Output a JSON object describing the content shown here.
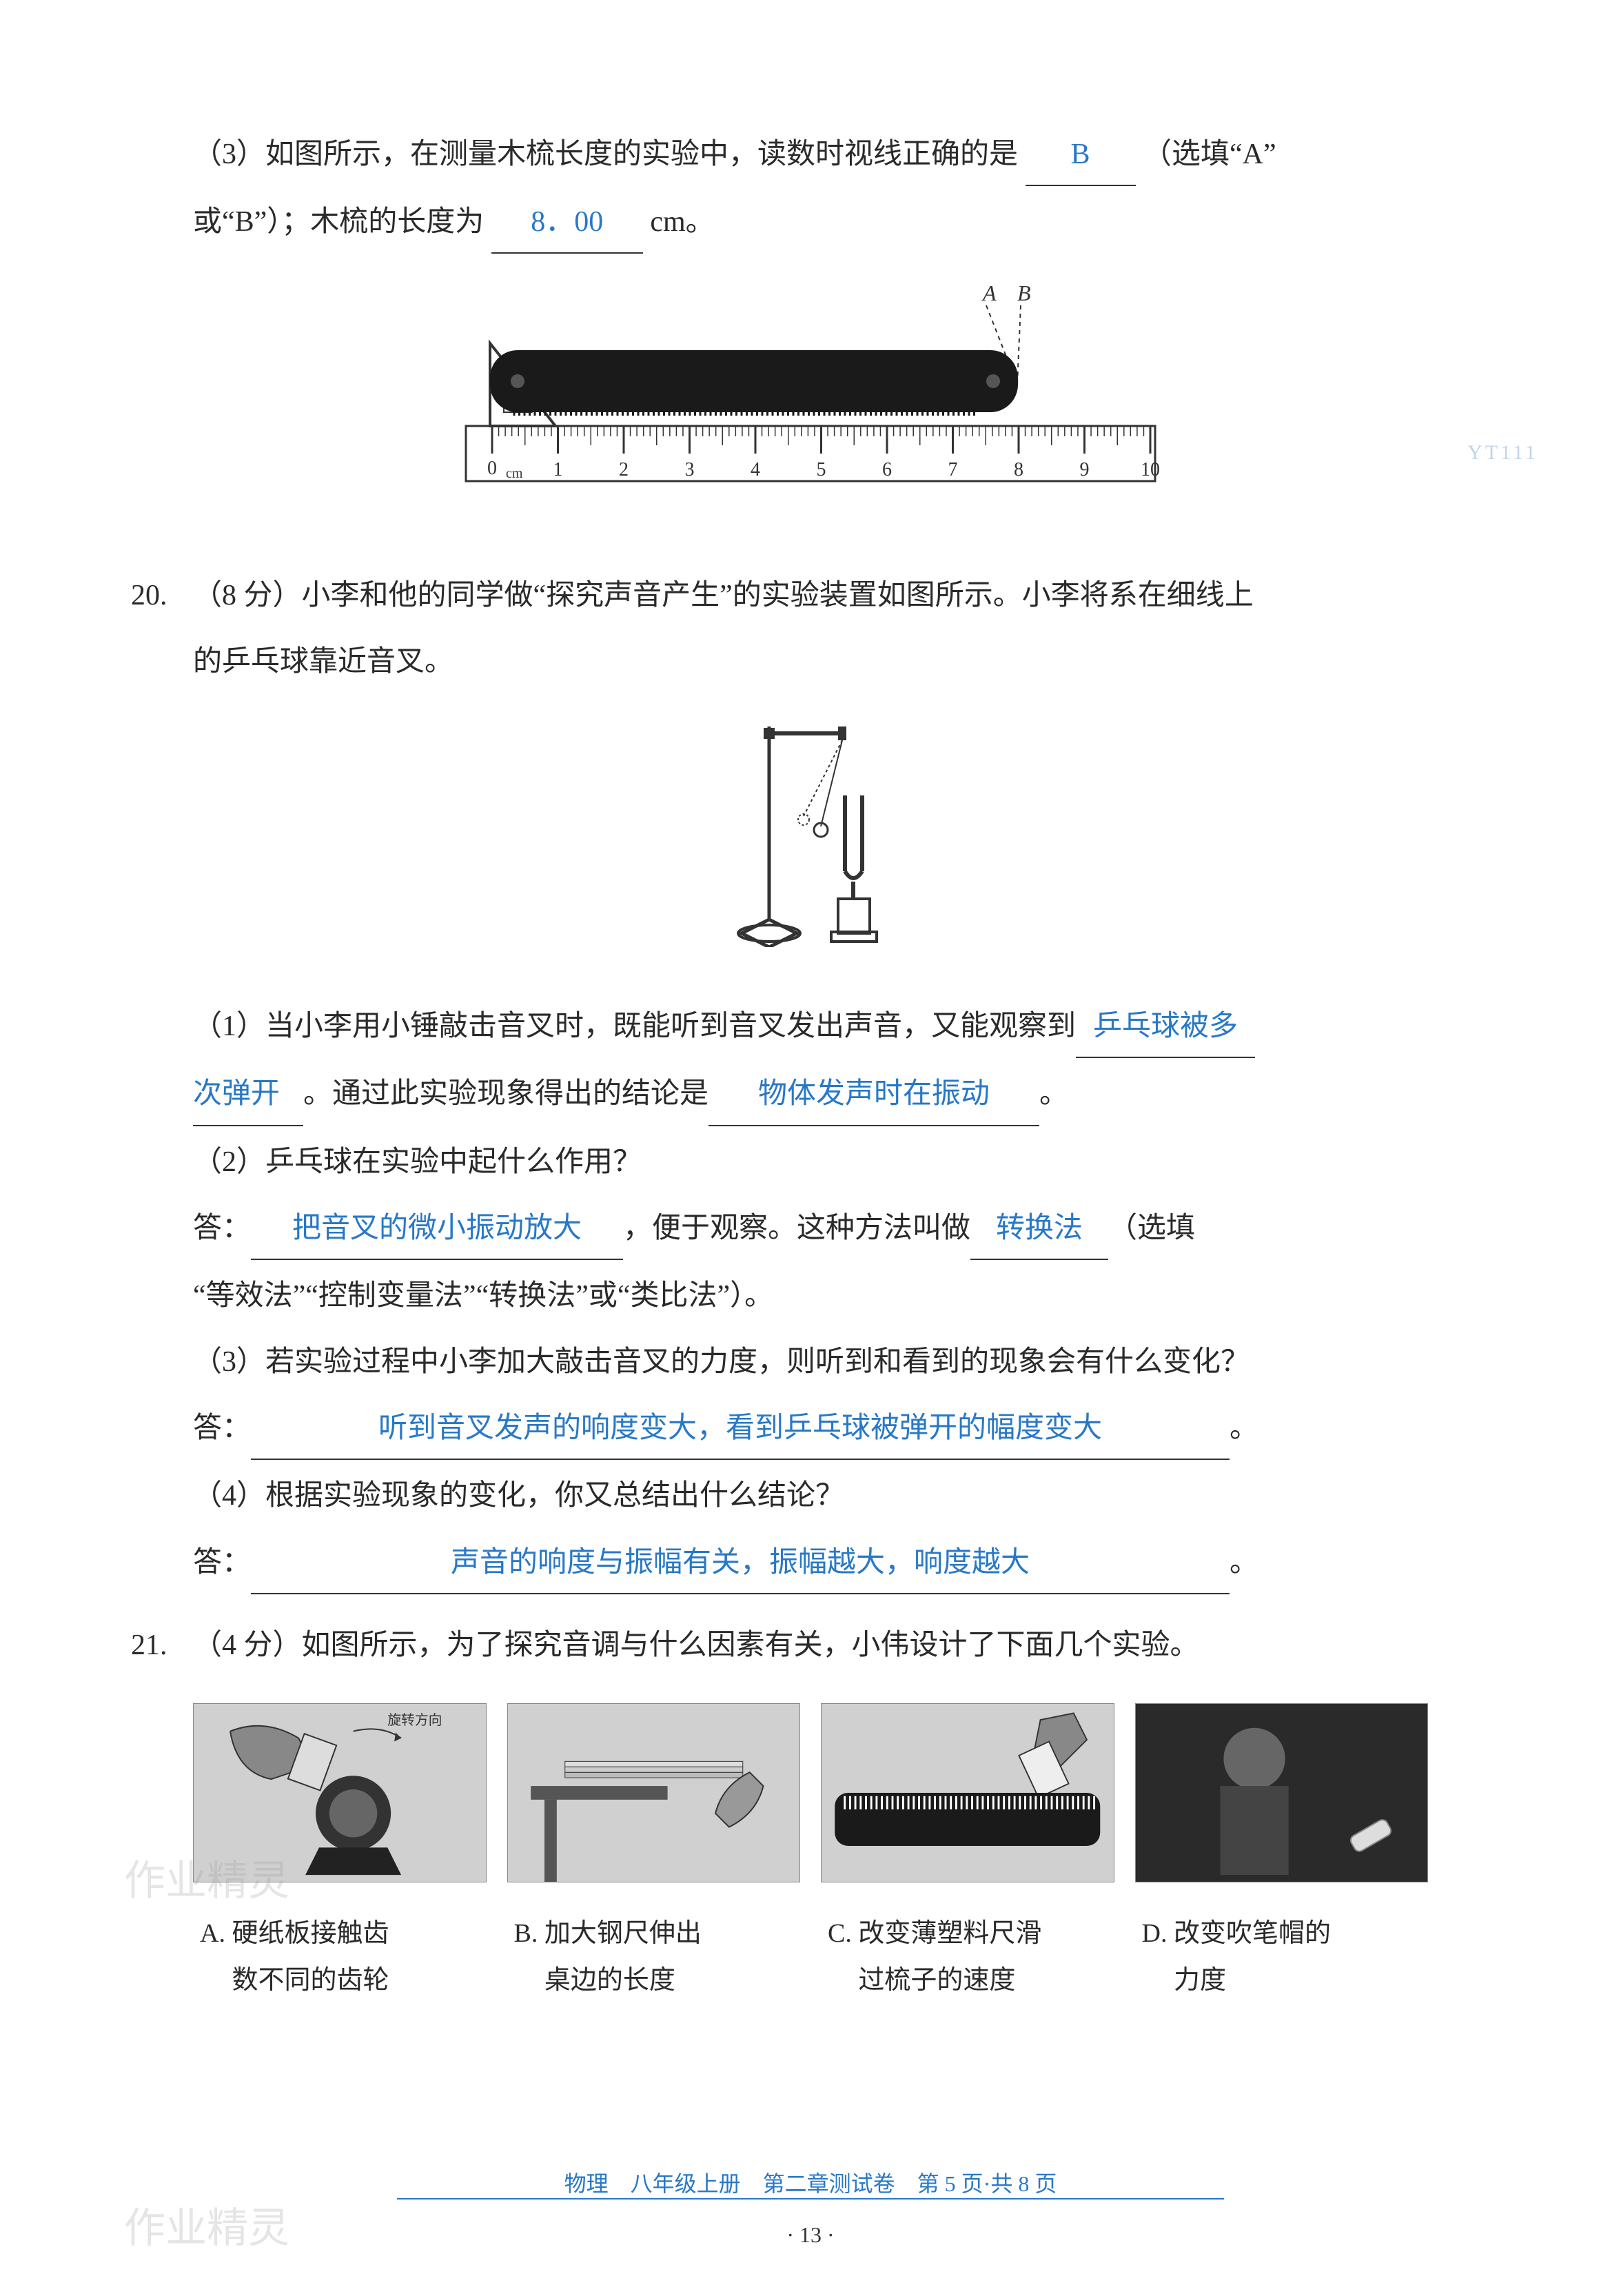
{
  "q19_3": {
    "text_before": "（3）如图所示，在测量木梳长度的实验中，读数时视线正确的是",
    "answer1": "B",
    "text_mid": "（选填“A”",
    "line2_before": "或“B”）；木梳的长度为",
    "answer2": "8．00",
    "unit": "cm。"
  },
  "ruler": {
    "label_a": "A",
    "label_b": "B",
    "start_label": "0",
    "unit_label": "cm",
    "tick_labels": [
      "1",
      "2",
      "3",
      "4",
      "5",
      "6",
      "7",
      "8",
      "9",
      "10"
    ],
    "comb_color": "#1a1a1a",
    "ruler_color": "#333333",
    "bg_color": "#f5f5f5"
  },
  "q20": {
    "num": "20.",
    "points": "（8 分）",
    "intro1": "小李和他的同学做“探究声音产生”的实验装置如图所示。小李将系在细线上",
    "intro2": "的乒乓球靠近音叉。",
    "p1_before": "（1）当小李用小锤敲击音叉时，既能听到音叉发出声音，又能观察到",
    "p1_ans1": "乒乓球被多",
    "p1_ans1_cont": "次弹开",
    "p1_mid": "。通过此实验现象得出的结论是",
    "p1_ans2": "物体发声时在振动",
    "p1_after": "。",
    "p2": "（2）乒乓球在实验中起什么作用？",
    "p2_ans_label": "答：",
    "p2_ans": "把音叉的微小振动放大",
    "p2_mid": "，便于观察。这种方法叫做",
    "p2_ans2": "转换法",
    "p2_after": "（选填",
    "p2_line2": "“等效法”“控制变量法”“转换法”或“类比法”）。",
    "p3": "（3）若实验过程中小李加大敲击音叉的力度，则听到和看到的现象会有什么变化？",
    "p3_ans_label": "答：",
    "p3_ans": "听到音叉发声的响度变大，看到乒乓球被弹开的幅度变大",
    "p3_after": "。",
    "p4": "（4）根据实验现象的变化，你又总结出什么结论？",
    "p4_ans_label": "答：",
    "p4_ans": "声音的响度与振幅有关，振幅越大，响度越大",
    "p4_after": "。"
  },
  "q21": {
    "num": "21.",
    "points": "（4 分）",
    "intro": "如图所示，为了探究音调与什么因素有关，小伟设计了下面几个实验。",
    "rotate_label": "旋转方向",
    "options": [
      {
        "key": "A.",
        "line1": "硬纸板接触齿",
        "line2": "数不同的齿轮"
      },
      {
        "key": "B.",
        "line1": "加大钢尺伸出",
        "line2": "桌边的长度"
      },
      {
        "key": "C.",
        "line1": "改变薄塑料尺滑",
        "line2": "过梳子的速度"
      },
      {
        "key": "D.",
        "line1": "改变吹笔帽的",
        "line2": "力度"
      }
    ]
  },
  "footer": {
    "text": "物理　八年级上册　第二章测试卷　第 5 页·共 8 页",
    "page": "· 13 ·"
  },
  "watermark": "作业精灵",
  "side": "YT111",
  "colors": {
    "text": "#2a2a2a",
    "answer": "#2878c8",
    "bg": "#ffffff"
  }
}
